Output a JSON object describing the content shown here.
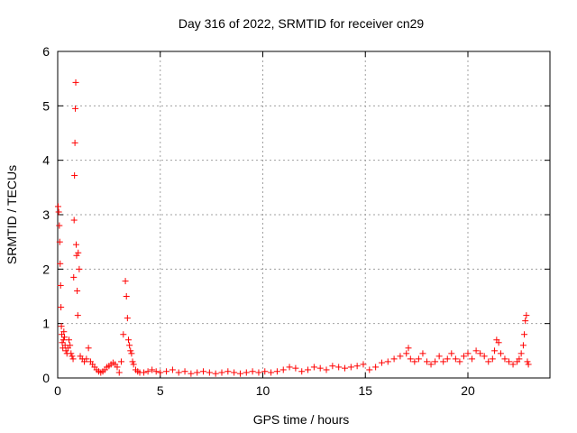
{
  "chart_data": {
    "type": "scatter",
    "title": "Day 316 of 2022, SRMTID for receiver cn29",
    "xlabel": "GPS time / hours",
    "ylabel": "SRMTID / TECUs",
    "xlim": [
      0,
      24
    ],
    "ylim": [
      0,
      6
    ],
    "xticks": [
      0,
      5,
      10,
      15,
      20
    ],
    "xtick_labels": [
      "0",
      "5",
      "10",
      "15",
      "20"
    ],
    "yticks": [
      0,
      1,
      2,
      3,
      4,
      5,
      6
    ],
    "ytick_labels": [
      "0",
      "1",
      "2",
      "3",
      "4",
      "5",
      "6"
    ],
    "grid": true,
    "marker": "+",
    "series": [
      {
        "name": "SRMTID",
        "color": "#ff0000",
        "x": [
          0.02,
          0.05,
          0.08,
          0.1,
          0.12,
          0.14,
          0.16,
          0.18,
          0.2,
          0.22,
          0.25,
          0.28,
          0.3,
          0.33,
          0.36,
          0.4,
          0.45,
          0.5,
          0.55,
          0.6,
          0.65,
          0.7,
          0.75,
          0.78,
          0.8,
          0.82,
          0.84,
          0.86,
          0.88,
          0.9,
          0.92,
          0.95,
          0.98,
          1.0,
          1.05,
          1.1,
          1.2,
          1.3,
          1.4,
          1.5,
          1.6,
          1.7,
          1.8,
          1.9,
          2.0,
          2.1,
          2.2,
          2.3,
          2.4,
          2.5,
          2.6,
          2.7,
          2.8,
          2.9,
          3.0,
          3.1,
          3.2,
          3.3,
          3.35,
          3.4,
          3.45,
          3.5,
          3.55,
          3.6,
          3.65,
          3.7,
          3.8,
          3.9,
          4.0,
          4.2,
          4.4,
          4.6,
          4.8,
          5.0,
          5.3,
          5.6,
          5.9,
          6.2,
          6.5,
          6.8,
          7.1,
          7.4,
          7.7,
          8.0,
          8.3,
          8.6,
          8.9,
          9.2,
          9.5,
          9.8,
          10.1,
          10.4,
          10.7,
          11.0,
          11.3,
          11.6,
          11.9,
          12.2,
          12.5,
          12.8,
          13.1,
          13.4,
          13.7,
          14.0,
          14.3,
          14.6,
          14.9,
          15.2,
          15.5,
          15.8,
          16.1,
          16.4,
          16.7,
          17.0,
          17.1,
          17.2,
          17.4,
          17.6,
          17.8,
          18.0,
          18.2,
          18.4,
          18.6,
          18.8,
          19.0,
          19.2,
          19.4,
          19.6,
          19.8,
          20.0,
          20.2,
          20.4,
          20.6,
          20.8,
          21.0,
          21.2,
          21.3,
          21.4,
          21.5,
          21.6,
          21.8,
          22.0,
          22.2,
          22.4,
          22.5,
          22.6,
          22.7,
          22.75,
          22.8,
          22.85,
          22.9,
          22.95
        ],
        "y": [
          3.15,
          3.05,
          2.8,
          2.5,
          2.1,
          1.7,
          1.3,
          0.95,
          0.8,
          0.65,
          0.55,
          0.7,
          0.85,
          0.75,
          0.6,
          0.5,
          0.45,
          0.55,
          0.7,
          0.6,
          0.45,
          0.4,
          0.35,
          1.85,
          2.9,
          3.72,
          4.32,
          4.95,
          5.43,
          2.45,
          2.25,
          1.6,
          1.15,
          2.3,
          2.0,
          0.4,
          0.35,
          0.3,
          0.35,
          0.55,
          0.3,
          0.25,
          0.2,
          0.15,
          0.12,
          0.1,
          0.12,
          0.15,
          0.2,
          0.22,
          0.25,
          0.28,
          0.25,
          0.2,
          0.1,
          0.3,
          0.8,
          1.78,
          1.5,
          1.1,
          0.7,
          0.6,
          0.5,
          0.45,
          0.3,
          0.25,
          0.15,
          0.12,
          0.1,
          0.1,
          0.12,
          0.15,
          0.12,
          0.1,
          0.12,
          0.15,
          0.1,
          0.12,
          0.08,
          0.1,
          0.12,
          0.1,
          0.08,
          0.1,
          0.12,
          0.1,
          0.08,
          0.1,
          0.12,
          0.1,
          0.12,
          0.1,
          0.12,
          0.15,
          0.2,
          0.18,
          0.12,
          0.15,
          0.2,
          0.18,
          0.15,
          0.22,
          0.2,
          0.18,
          0.2,
          0.22,
          0.25,
          0.15,
          0.2,
          0.28,
          0.3,
          0.35,
          0.4,
          0.45,
          0.55,
          0.35,
          0.3,
          0.35,
          0.45,
          0.3,
          0.25,
          0.3,
          0.4,
          0.3,
          0.35,
          0.45,
          0.35,
          0.3,
          0.4,
          0.45,
          0.35,
          0.5,
          0.45,
          0.4,
          0.3,
          0.35,
          0.5,
          0.7,
          0.65,
          0.45,
          0.35,
          0.3,
          0.25,
          0.3,
          0.35,
          0.45,
          0.6,
          0.8,
          1.05,
          1.15,
          0.3,
          0.25
        ]
      }
    ]
  }
}
